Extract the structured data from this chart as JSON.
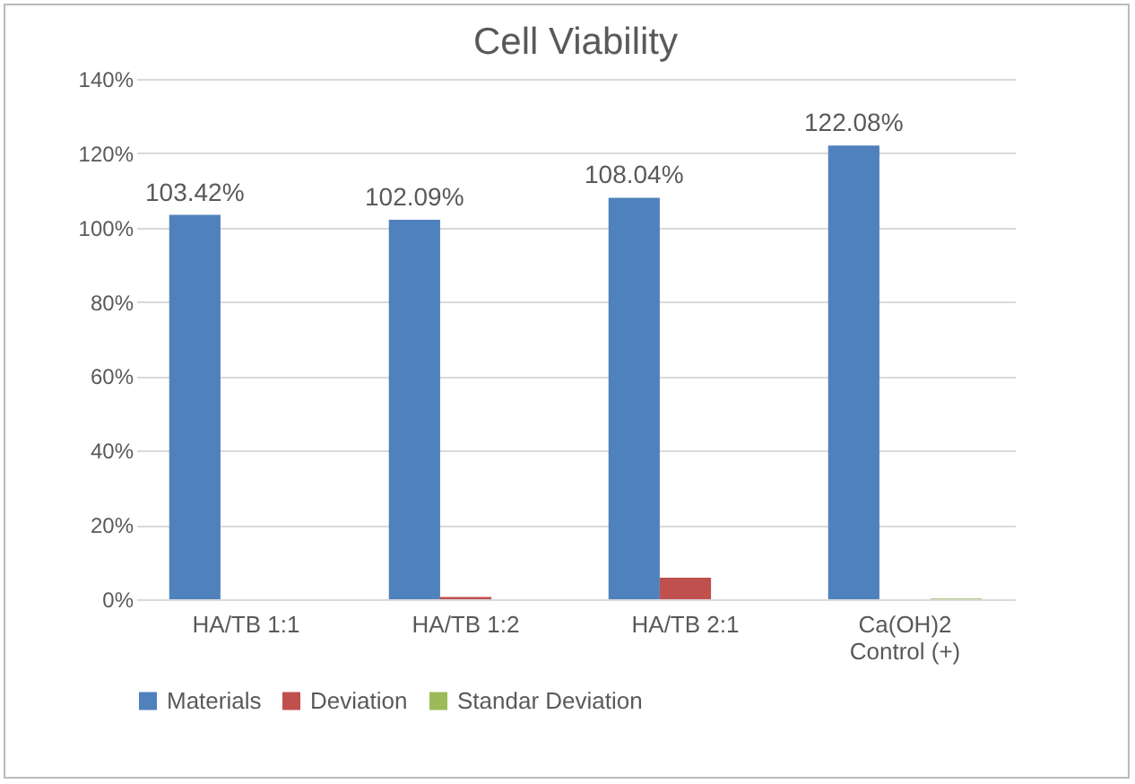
{
  "chart_data": {
    "type": "bar",
    "title": "Cell Viability",
    "categories": [
      "HA/TB 1:1",
      "HA/TB 1:2",
      "HA/TB 2:1",
      "Ca(OH)2\nControl (+)"
    ],
    "series": [
      {
        "name": "Materials",
        "color": "#4f81bd",
        "values": [
          103.42,
          102.09,
          108.04,
          122.08
        ],
        "value_labels": [
          "103.42%",
          "102.09%",
          "108.04%",
          "122.08%"
        ]
      },
      {
        "name": "Deviation",
        "color": "#c0504d",
        "values": [
          0,
          0.6,
          5.8,
          0
        ]
      },
      {
        "name": "Standar Deviation",
        "color": "#9bbb59",
        "values": [
          0,
          0,
          0,
          0.2
        ]
      }
    ],
    "ylim": [
      0,
      140
    ],
    "yticks": [
      {
        "value": 0,
        "label": "0%"
      },
      {
        "value": 20,
        "label": "20%"
      },
      {
        "value": 40,
        "label": "40%"
      },
      {
        "value": 60,
        "label": "60%"
      },
      {
        "value": 80,
        "label": "80%"
      },
      {
        "value": 100,
        "label": "100%"
      },
      {
        "value": 120,
        "label": "120%"
      },
      {
        "value": 140,
        "label": "140%"
      }
    ],
    "grid": "y",
    "legend": "bottom"
  }
}
